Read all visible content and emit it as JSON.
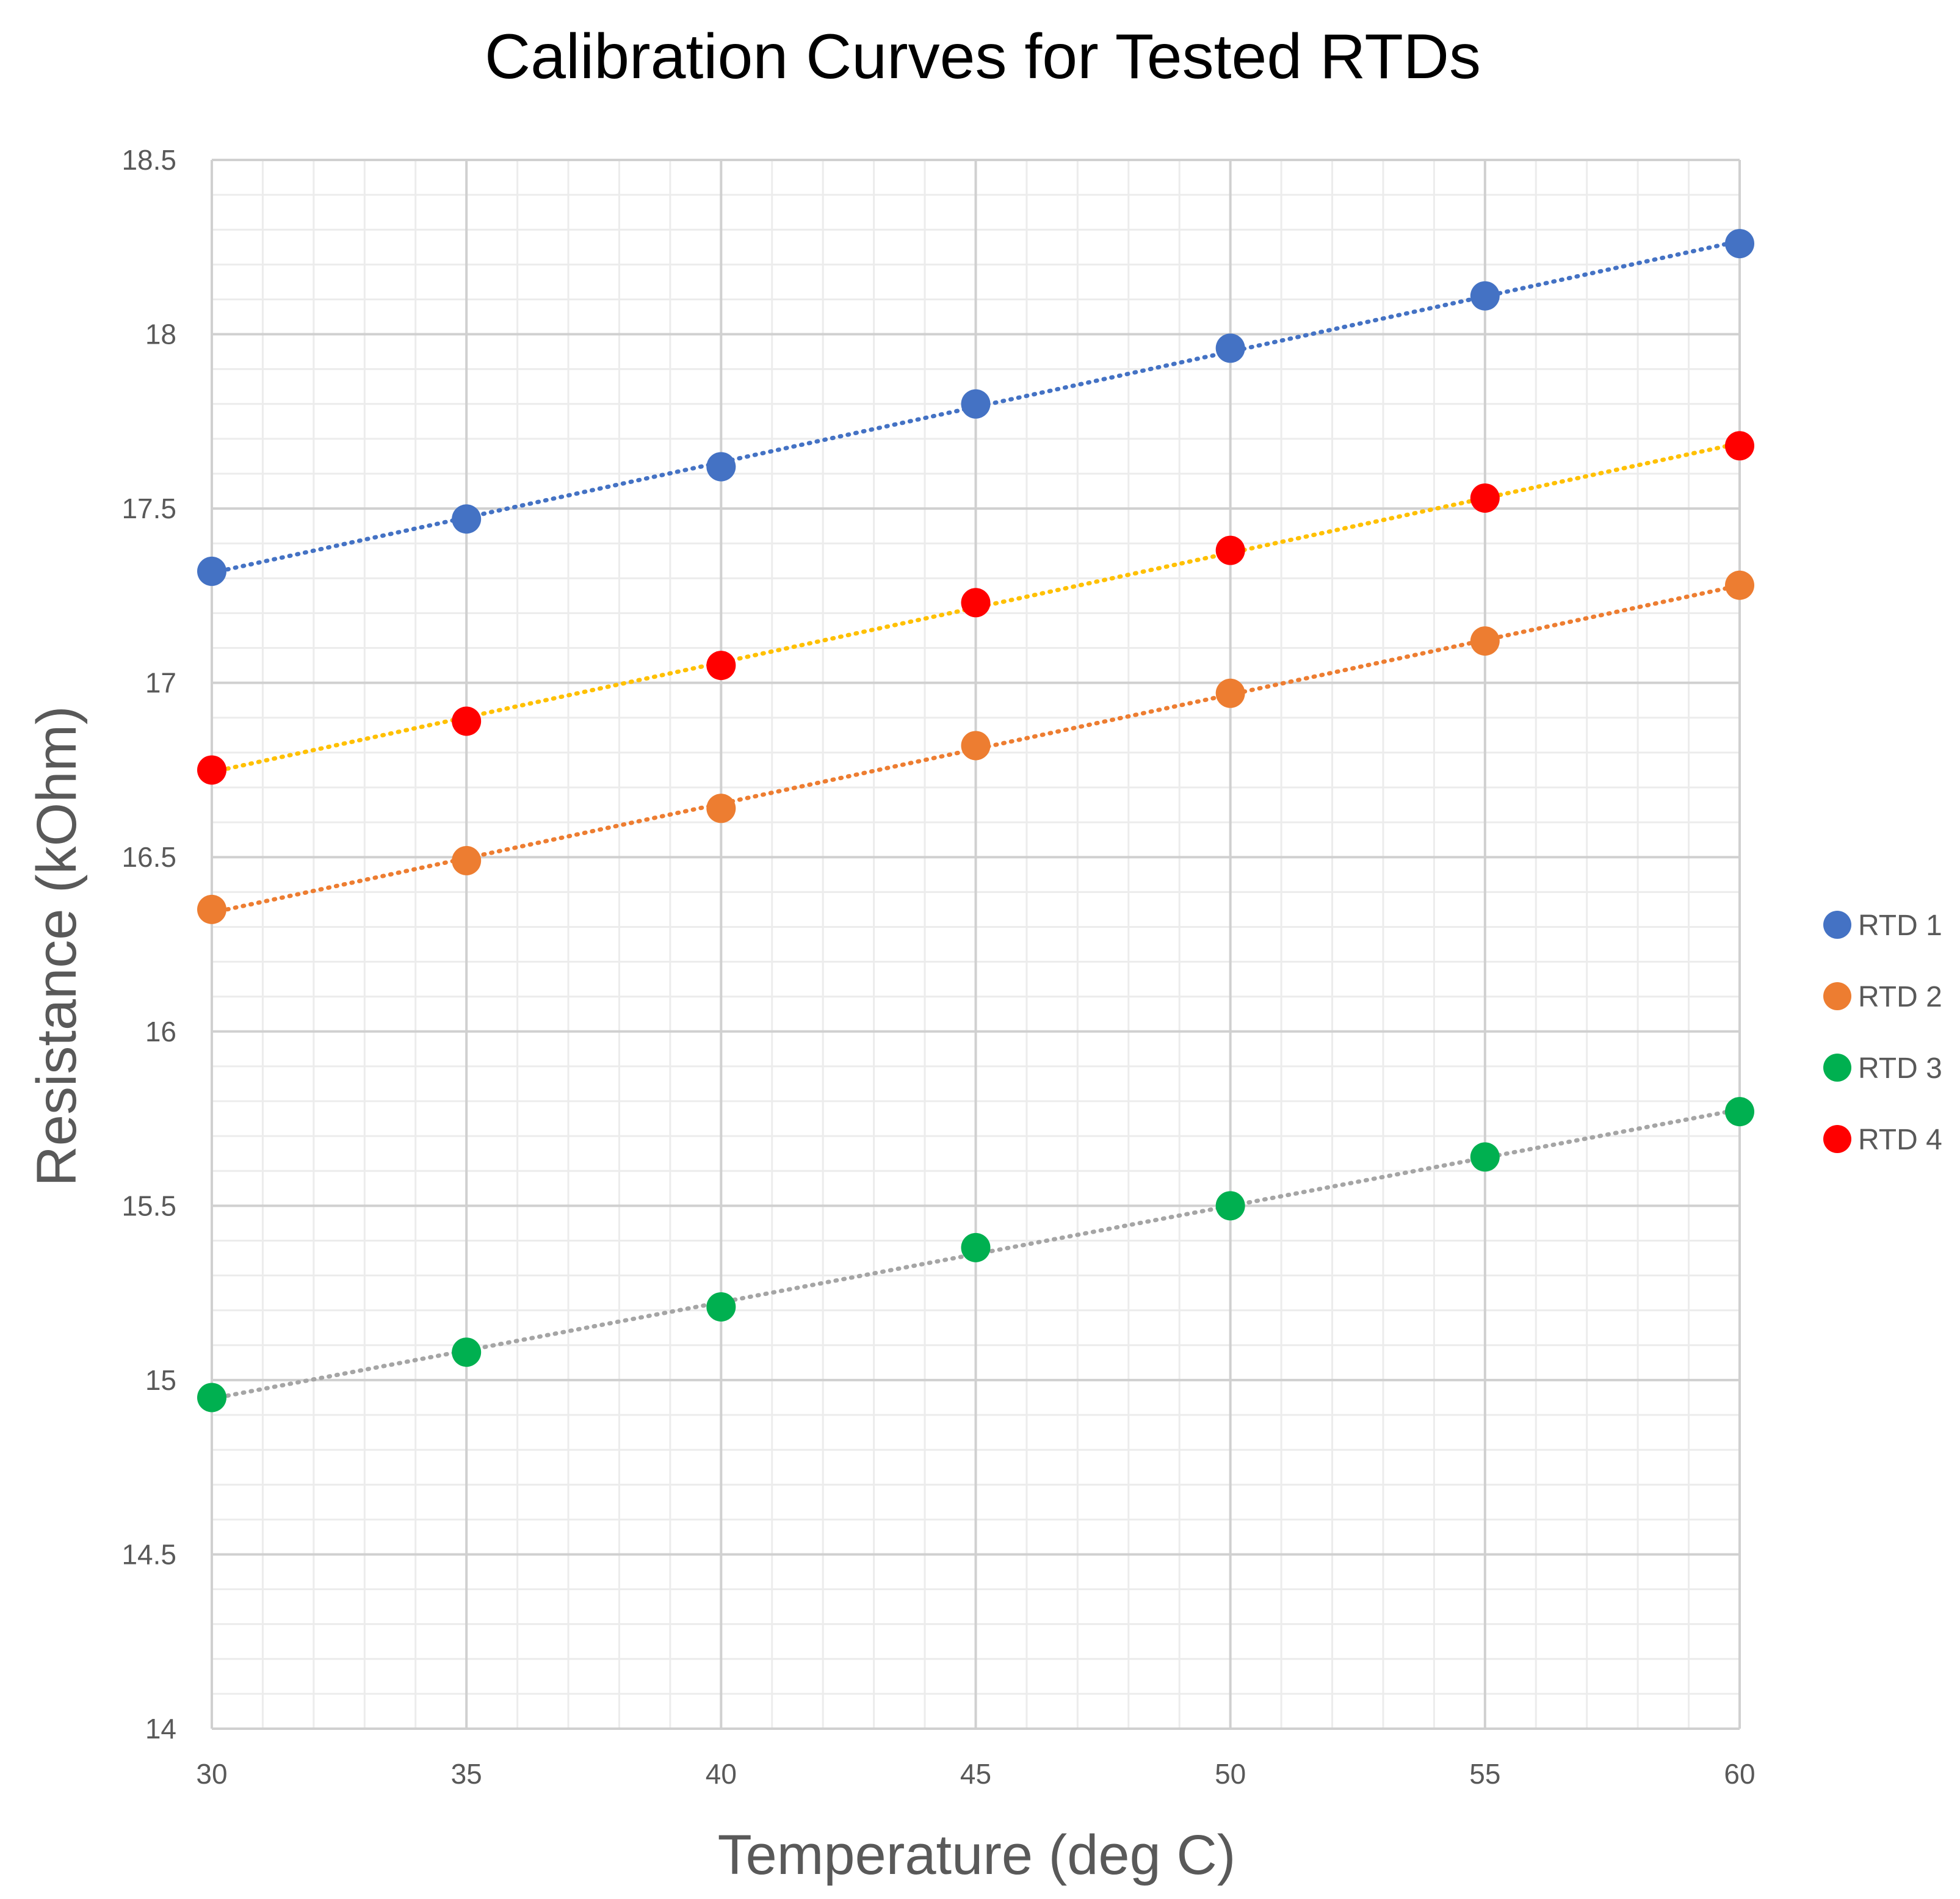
{
  "chart_data": {
    "type": "scatter",
    "title": "Calibration Curves for Tested RTDs",
    "xlabel": "Temperature (deg C)",
    "ylabel": "Resistance (kOhm)",
    "xlim": [
      30,
      60
    ],
    "ylim": [
      14,
      18.5
    ],
    "x_ticks": [
      30,
      35,
      40,
      45,
      50,
      55,
      60
    ],
    "y_ticks": [
      14,
      14.5,
      15,
      15.5,
      16,
      16.5,
      17,
      17.5,
      18,
      18.5
    ],
    "grid": true,
    "legend_position": "right",
    "x": [
      30,
      35,
      40,
      45,
      50,
      55,
      60
    ],
    "series": [
      {
        "name": "RTD 1",
        "color": "#4472C4",
        "trend_color": "#4472C4",
        "values": [
          17.32,
          17.47,
          17.62,
          17.8,
          17.96,
          18.11,
          18.26
        ]
      },
      {
        "name": "RTD 2",
        "color": "#ED7D31",
        "trend_color": "#ED7D31",
        "values": [
          16.35,
          16.49,
          16.64,
          16.82,
          16.97,
          17.12,
          17.28
        ]
      },
      {
        "name": "RTD 3",
        "color": "#00B050",
        "trend_color": "#A5A5A5",
        "values": [
          14.95,
          15.08,
          15.21,
          15.38,
          15.5,
          15.64,
          15.77
        ]
      },
      {
        "name": "RTD 4",
        "color": "#FF0000",
        "trend_color": "#FFC000",
        "values": [
          16.75,
          16.89,
          17.05,
          17.23,
          17.38,
          17.53,
          17.68
        ]
      }
    ]
  }
}
